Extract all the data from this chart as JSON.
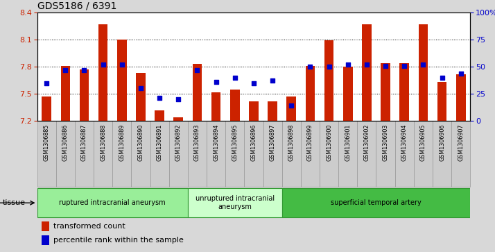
{
  "title": "GDS5186 / 6391",
  "samples": [
    "GSM1306885",
    "GSM1306886",
    "GSM1306887",
    "GSM1306888",
    "GSM1306889",
    "GSM1306890",
    "GSM1306891",
    "GSM1306892",
    "GSM1306893",
    "GSM1306894",
    "GSM1306895",
    "GSM1306896",
    "GSM1306897",
    "GSM1306898",
    "GSM1306899",
    "GSM1306900",
    "GSM1306901",
    "GSM1306902",
    "GSM1306903",
    "GSM1306904",
    "GSM1306905",
    "GSM1306906",
    "GSM1306907"
  ],
  "transformed_count": [
    7.47,
    7.81,
    7.77,
    8.27,
    8.1,
    7.73,
    7.32,
    7.24,
    7.83,
    7.52,
    7.55,
    7.42,
    7.42,
    7.47,
    7.81,
    8.09,
    7.8,
    8.27,
    7.84,
    7.84,
    8.27,
    7.63,
    7.72
  ],
  "percentile_rank": [
    35,
    47,
    47,
    52,
    52,
    30,
    21,
    20,
    47,
    36,
    40,
    35,
    37,
    14,
    50,
    50,
    52,
    52,
    51,
    51,
    52,
    40,
    44
  ],
  "groups": [
    {
      "label": "ruptured intracranial aneurysm",
      "start": 0,
      "end": 8
    },
    {
      "label": "unruptured intracranial\naneurysm",
      "start": 8,
      "end": 13
    },
    {
      "label": "superficial temporal artery",
      "start": 13,
      "end": 23
    }
  ],
  "group_colors": [
    "#99ee99",
    "#ccffcc",
    "#44bb44"
  ],
  "group_border": "#339933",
  "ylim_left": [
    7.2,
    8.4
  ],
  "ylim_right": [
    0,
    100
  ],
  "yticks_left": [
    7.2,
    7.5,
    7.8,
    8.1,
    8.4
  ],
  "yticks_right": [
    0,
    25,
    50,
    75,
    100
  ],
  "ytick_labels_right": [
    "0",
    "25",
    "50",
    "75",
    "100%"
  ],
  "bar_color": "#cc2200",
  "dot_color": "#0000cc",
  "background_color": "#d8d8d8",
  "plot_bg_color": "#ffffff",
  "xtick_bg_color": "#cccccc",
  "legend_items": [
    {
      "label": "transformed count",
      "color": "#cc2200"
    },
    {
      "label": "percentile rank within the sample",
      "color": "#0000cc"
    }
  ],
  "left_tick_color": "#cc2200",
  "right_tick_color": "#0000cc",
  "title_fontsize": 10,
  "bar_width": 0.5,
  "dot_size": 18
}
